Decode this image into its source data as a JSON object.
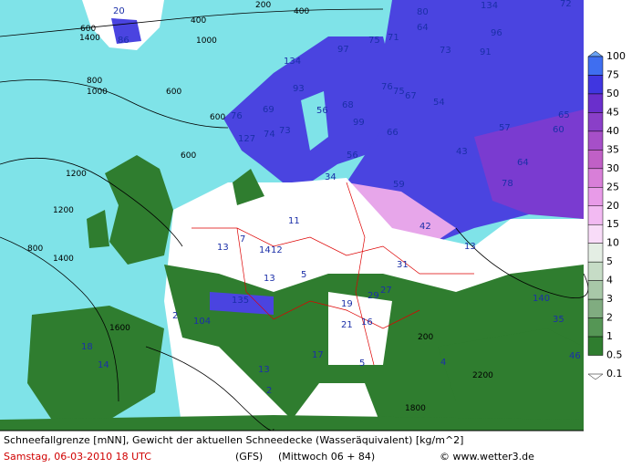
{
  "legend": {
    "labels": [
      "100",
      "75",
      "50",
      "45",
      "40",
      "35",
      "30",
      "25",
      "20",
      "15",
      "10",
      "5",
      "4",
      "3",
      "2",
      "1",
      "0.5",
      "0.1"
    ]
  },
  "map": {
    "snow_labels": [
      "20",
      "86",
      "80",
      "64",
      "134",
      "96",
      "72",
      "75",
      "71",
      "73",
      "91",
      "97",
      "134",
      "93",
      "76",
      "75",
      "67",
      "54",
      "56",
      "68",
      "69",
      "76",
      "99",
      "74",
      "73",
      "127",
      "66",
      "57",
      "65",
      "60",
      "43",
      "56",
      "64",
      "34",
      "59",
      "78",
      "42",
      "11",
      "13",
      "7",
      "14",
      "12",
      "13",
      "31",
      "13",
      "5",
      "27",
      "29",
      "19",
      "135",
      "140",
      "2",
      "104",
      "21",
      "16",
      "35",
      "18",
      "14",
      "17",
      "5",
      "4",
      "13",
      "2",
      "46"
    ],
    "contour_labels": [
      "600",
      "400",
      "1000",
      "400",
      "200",
      "1000",
      "800",
      "600",
      "600",
      "1200",
      "1200",
      "800",
      "1400",
      "1400",
      "600",
      "200",
      "2200",
      "1800",
      "1600"
    ]
  },
  "footer": {
    "caption": "Schneefallgrenze [mNN], Gewicht der aktuellen Schneedecke (Wasseräquivalent) [kg/m^2]",
    "date": "Samstag, 06-03-2010  18 UTC",
    "model": "(GFS)",
    "forecast": "(Mittwoch 06 + 84)",
    "source": "© www.wetter3.de"
  }
}
